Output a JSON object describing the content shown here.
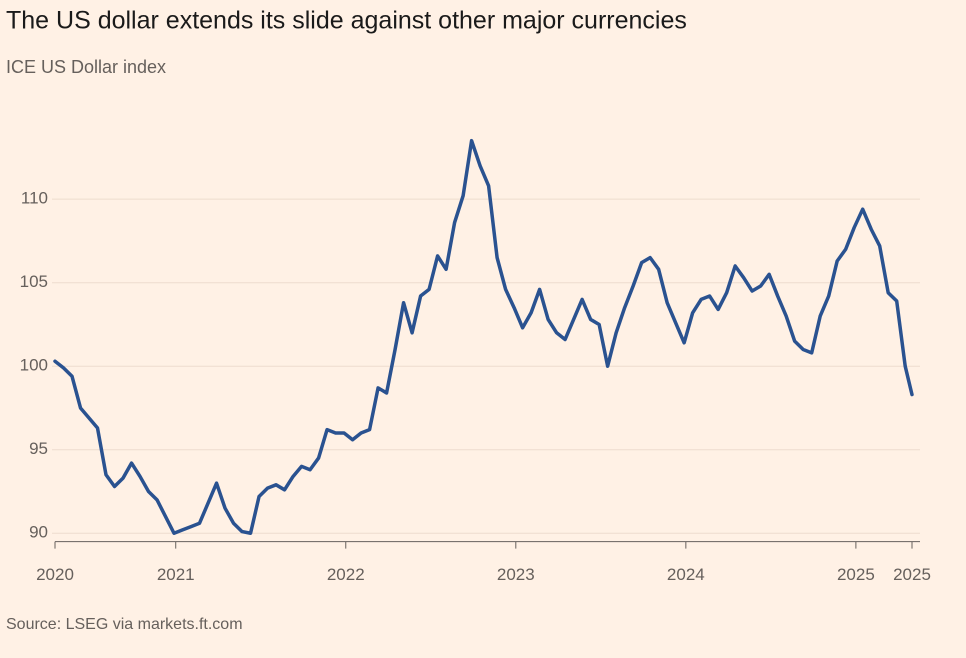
{
  "chart_data": {
    "type": "line",
    "title": "The US dollar extends its slide against other major currencies",
    "subtitle": "ICE US Dollar index",
    "source": "Source: LSEG via markets.ft.com",
    "color": "#2a5290",
    "grid": true,
    "xlim": [
      2020.29,
      2025.33
    ],
    "xticks": [
      {
        "value": 2020.29,
        "label": "2020"
      },
      2021,
      2022,
      2023,
      2024,
      2025,
      {
        "value": 2025.33,
        "label": "2025"
      }
    ],
    "ylim": [
      89.5,
      114.5
    ],
    "yticks": [
      90,
      95,
      100,
      105,
      110
    ],
    "x": [
      2020.29,
      2020.34,
      2020.39,
      2020.44,
      2020.49,
      2020.54,
      2020.59,
      2020.64,
      2020.69,
      2020.74,
      2020.79,
      2020.84,
      2020.89,
      2020.94,
      2020.99,
      2021.04,
      2021.09,
      2021.14,
      2021.19,
      2021.24,
      2021.29,
      2021.34,
      2021.39,
      2021.44,
      2021.49,
      2021.54,
      2021.59,
      2021.64,
      2021.69,
      2021.74,
      2021.79,
      2021.84,
      2021.89,
      2021.94,
      2021.99,
      2022.04,
      2022.09,
      2022.14,
      2022.19,
      2022.24,
      2022.29,
      2022.34,
      2022.39,
      2022.44,
      2022.49,
      2022.54,
      2022.59,
      2022.64,
      2022.69,
      2022.74,
      2022.79,
      2022.84,
      2022.89,
      2022.94,
      2022.99,
      2023.04,
      2023.09,
      2023.14,
      2023.19,
      2023.24,
      2023.29,
      2023.34,
      2023.39,
      2023.44,
      2023.49,
      2023.54,
      2023.59,
      2023.64,
      2023.69,
      2023.74,
      2023.79,
      2023.84,
      2023.89,
      2023.94,
      2023.99,
      2024.04,
      2024.09,
      2024.14,
      2024.19,
      2024.24,
      2024.29,
      2024.34,
      2024.39,
      2024.44,
      2024.49,
      2024.54,
      2024.59,
      2024.64,
      2024.69,
      2024.74,
      2024.79,
      2024.84,
      2024.89,
      2024.94,
      2024.99,
      2025.04,
      2025.09,
      2025.14,
      2025.19,
      2025.24,
      2025.29,
      2025.33
    ],
    "values": [
      100.3,
      99.9,
      99.4,
      97.5,
      96.9,
      96.3,
      93.5,
      92.8,
      93.3,
      94.2,
      93.4,
      92.5,
      92.0,
      91.0,
      90.0,
      90.2,
      90.4,
      90.6,
      91.8,
      93.0,
      91.5,
      90.6,
      90.1,
      90.0,
      92.2,
      92.7,
      92.9,
      92.6,
      93.4,
      94.0,
      93.8,
      94.5,
      96.2,
      96.0,
      96.0,
      95.6,
      96.0,
      96.2,
      98.7,
      98.4,
      101.0,
      103.8,
      102.0,
      104.2,
      104.6,
      106.6,
      105.8,
      108.6,
      110.2,
      113.5,
      112.0,
      110.8,
      106.5,
      104.6,
      103.5,
      102.3,
      103.2,
      104.6,
      102.8,
      102.0,
      101.6,
      102.8,
      104.0,
      102.8,
      102.5,
      100.0,
      102.0,
      103.5,
      104.8,
      106.2,
      106.5,
      105.8,
      103.8,
      102.6,
      101.4,
      103.2,
      104.0,
      104.2,
      103.4,
      104.4,
      106.0,
      105.3,
      104.5,
      104.8,
      105.5,
      104.2,
      103.0,
      101.5,
      101.0,
      100.8,
      103.0,
      104.2,
      106.3,
      107.0,
      108.3,
      109.4,
      108.2,
      107.2,
      104.4,
      103.9,
      100.0,
      98.3
    ]
  }
}
